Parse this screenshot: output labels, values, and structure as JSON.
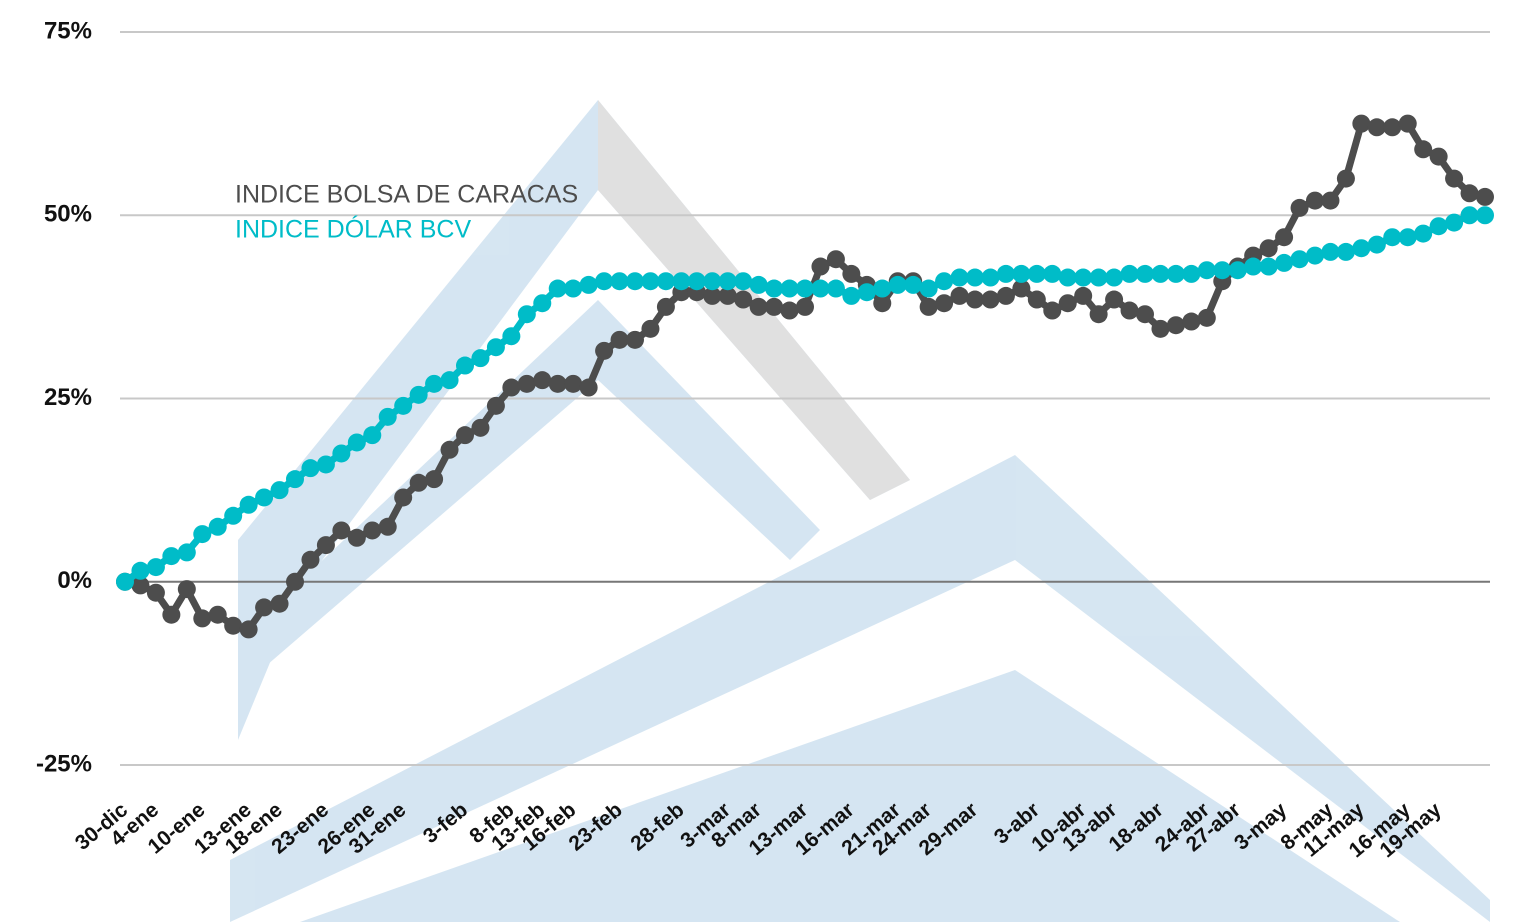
{
  "chart_data": {
    "type": "line",
    "categories": [
      "30-dic",
      null,
      "4-ene",
      null,
      null,
      "10-ene",
      null,
      null,
      "13-ene",
      null,
      "18-ene",
      null,
      null,
      "23-ene",
      null,
      null,
      "26-ene",
      null,
      "31-ene",
      null,
      null,
      null,
      "3-feb",
      null,
      null,
      "8-feb",
      null,
      "13-feb",
      null,
      "16-feb",
      null,
      null,
      "23-feb",
      null,
      null,
      null,
      "28-feb",
      null,
      null,
      "3-mar",
      null,
      "8-mar",
      null,
      null,
      "13-mar",
      null,
      null,
      "16-mar",
      null,
      null,
      "21-mar",
      null,
      "24-mar",
      null,
      null,
      "29-mar",
      null,
      null,
      null,
      "3-abr",
      null,
      null,
      "10-abr",
      null,
      "13-abr",
      null,
      null,
      "18-abr",
      null,
      null,
      "24-abr",
      null,
      "27-abr",
      null,
      null,
      "3-may",
      null,
      null,
      "8-may",
      null,
      "11-may",
      null,
      null,
      "16-may",
      null,
      "19-may",
      null,
      null,
      null
    ],
    "series": [
      {
        "name": "INDICE BOLSA DE CARACAS",
        "color": "#4d4d4d",
        "values": [
          0,
          -0.5,
          -1.5,
          -4.5,
          -1,
          -5,
          -4.5,
          -6,
          -6.5,
          -3.5,
          -3,
          0,
          3,
          5,
          7,
          6,
          7,
          7.5,
          11.5,
          13.5,
          14,
          18,
          20,
          21,
          24,
          26.5,
          27,
          27.5,
          27,
          27,
          26.5,
          31.5,
          33,
          33,
          34.5,
          37.5,
          39.5,
          39.5,
          39,
          39,
          38.5,
          37.5,
          37.5,
          37,
          37.5,
          43,
          44,
          42,
          40.5,
          38,
          41,
          41,
          37.5,
          38,
          39,
          38.5,
          38.5,
          39,
          40,
          38.5,
          37,
          38,
          39,
          36.5,
          38.5,
          37,
          36.5,
          34.5,
          35,
          35.5,
          36,
          41,
          43,
          44.5,
          45.5,
          47,
          51,
          52,
          52,
          55,
          62.5,
          62,
          62,
          62.5,
          59,
          58,
          55,
          53,
          52.5
        ]
      },
      {
        "name": "INDICE DÓLAR BCV",
        "color": "#00bcc8",
        "values": [
          0,
          1.5,
          2,
          3.5,
          4,
          6.5,
          7.5,
          9,
          10.5,
          11.5,
          12.5,
          14,
          15.5,
          16,
          17.5,
          19,
          20,
          22.5,
          24,
          25.5,
          27,
          27.5,
          29.5,
          30.5,
          32,
          33.5,
          36.5,
          38,
          40,
          40,
          40.5,
          41,
          41,
          41,
          41,
          41,
          41,
          41,
          41,
          41,
          41,
          40.5,
          40,
          40,
          40,
          40,
          40,
          39,
          39.5,
          40,
          40.5,
          40.5,
          40,
          41,
          41.5,
          41.5,
          41.5,
          42,
          42,
          42,
          42,
          41.5,
          41.5,
          41.5,
          41.5,
          42,
          42,
          42,
          42,
          42,
          42.5,
          42.5,
          42.5,
          43,
          43,
          43.5,
          44,
          44.5,
          45,
          45,
          45.5,
          46,
          47,
          47,
          47.5,
          48.5,
          49,
          50,
          50
        ]
      }
    ],
    "ylim": [
      -25,
      75
    ],
    "yticks": [
      {
        "value": -25,
        "label": "-25%"
      },
      {
        "value": 0,
        "label": "0%"
      },
      {
        "value": 25,
        "label": "25%"
      },
      {
        "value": 50,
        "label": "50%"
      },
      {
        "value": 75,
        "label": "75%"
      }
    ],
    "grid": true
  }
}
